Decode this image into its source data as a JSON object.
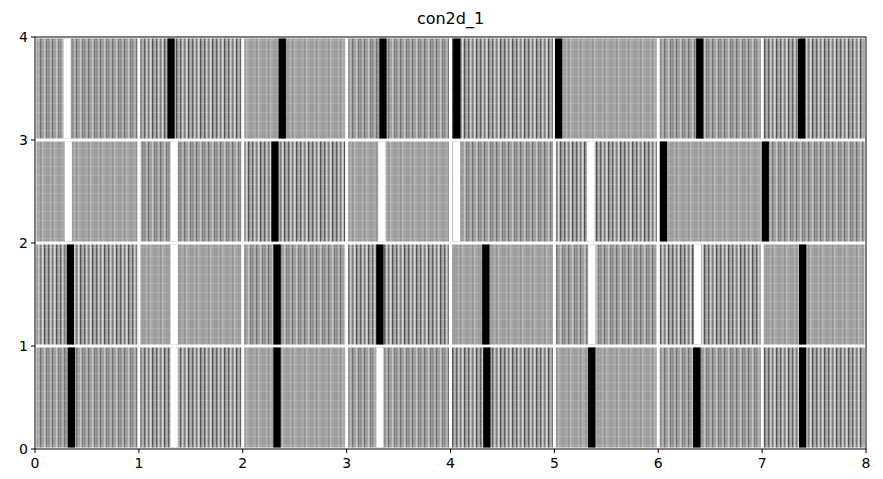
{
  "chart_data": {
    "type": "image_grid",
    "title": "con2d_1",
    "xlim": [
      0,
      8
    ],
    "ylim": [
      0,
      4
    ],
    "xticks": [
      0,
      1,
      2,
      3,
      4,
      5,
      6,
      7,
      8
    ],
    "yticks": [
      0,
      1,
      2,
      3,
      4
    ],
    "panels": [
      {
        "stripe_x": 0.31,
        "color": "#ffffff"
      },
      {
        "stripe_x": 1.31,
        "color": "#000000"
      },
      {
        "stripe_x": 2.38,
        "color": "#000000"
      },
      {
        "stripe_x": 3.35,
        "color": "#000000"
      },
      {
        "stripe_x": 4.06,
        "color": "#000000"
      },
      {
        "stripe_x": 5.04,
        "color": "#000000"
      },
      {
        "stripe_x": 6.4,
        "color": "#000000"
      },
      {
        "stripe_x": 7.38,
        "color": "#000000"
      },
      {
        "stripe_x": 0.32,
        "color": "#ffffff"
      },
      {
        "stripe_x": 1.34,
        "color": "#ffffff"
      },
      {
        "stripe_x": 2.31,
        "color": "#000000"
      },
      {
        "stripe_x": 3.34,
        "color": "#ffffff"
      },
      {
        "stripe_x": 4.06,
        "color": "#ffffff"
      },
      {
        "stripe_x": 5.35,
        "color": "#ffffff"
      },
      {
        "stripe_x": 6.05,
        "color": "#000000"
      },
      {
        "stripe_x": 7.03,
        "color": "#000000"
      },
      {
        "stripe_x": 0.34,
        "color": "#000000"
      },
      {
        "stripe_x": 1.34,
        "color": "#ffffff"
      },
      {
        "stripe_x": 2.33,
        "color": "#000000"
      },
      {
        "stripe_x": 3.32,
        "color": "#000000"
      },
      {
        "stripe_x": 4.34,
        "color": "#000000"
      },
      {
        "stripe_x": 5.36,
        "color": "#ffffff"
      },
      {
        "stripe_x": 6.38,
        "color": "#ffffff"
      },
      {
        "stripe_x": 7.39,
        "color": "#000000"
      },
      {
        "stripe_x": 0.35,
        "color": "#000000"
      },
      {
        "stripe_x": 1.34,
        "color": "#ffffff"
      },
      {
        "stripe_x": 2.33,
        "color": "#000000"
      },
      {
        "stripe_x": 3.32,
        "color": "#ffffff"
      },
      {
        "stripe_x": 4.35,
        "color": "#000000"
      },
      {
        "stripe_x": 5.36,
        "color": "#000000"
      },
      {
        "stripe_x": 6.37,
        "color": "#000000"
      },
      {
        "stripe_x": 7.39,
        "color": "#000000"
      }
    ]
  }
}
